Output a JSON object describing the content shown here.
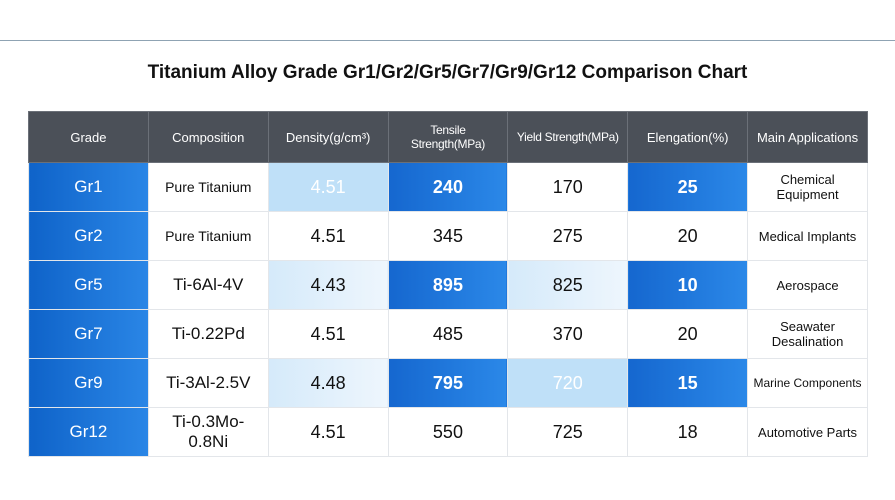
{
  "title": "Titanium Alloy Grade Gr1/Gr2/Gr5/Gr7/Gr9/Gr12 Comparison Chart",
  "table": {
    "headers": [
      "Grade",
      "Composition",
      "Density(g/cm³)",
      "Tensile Strength(MPa)",
      "Yield Strength(MPa)",
      "Elengation(%)",
      "Main Applications"
    ],
    "rows": [
      [
        "Gr1",
        "Pure Titanium",
        "4.51",
        "240",
        "170",
        "25",
        "Chemical Equipment"
      ],
      [
        "Gr2",
        "Pure Titanium",
        "4.51",
        "345",
        "275",
        "20",
        "Medical Implants"
      ],
      [
        "Gr5",
        "Ti-6Al-4V",
        "4.43",
        "895",
        "825",
        "10",
        "Aerospace"
      ],
      [
        "Gr7",
        "Ti-0.22Pd",
        "4.51",
        "485",
        "370",
        "20",
        "Seawater Desalination"
      ],
      [
        "Gr9",
        "Ti-3Al-2.5V",
        "4.48",
        "795",
        "720",
        "15",
        "Marine Components"
      ],
      [
        "Gr12",
        "Ti-0.3Mo-0.8Ni",
        "4.51",
        "550",
        "725",
        "18",
        "Automotive Parts"
      ]
    ]
  }
}
